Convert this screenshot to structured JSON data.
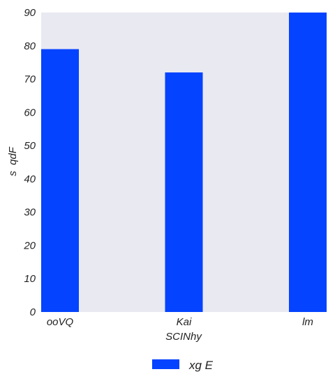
{
  "chart_data": {
    "type": "bar",
    "categories": [
      "ooVQ",
      "Kai",
      "lm"
    ],
    "series": [
      {
        "name": "xg E",
        "values": [
          79,
          72,
          90
        ]
      }
    ],
    "xlabel": "SCINhy",
    "ylabel": "s  qdF",
    "ylim": [
      0,
      90
    ],
    "yticks": [
      0,
      10,
      20,
      30,
      40,
      50,
      60,
      70,
      80,
      90
    ],
    "grid": false,
    "legend_position": "bottom-center",
    "colors": {
      "bar": "#0443ff",
      "plot_background": "#e9e9f2"
    }
  }
}
